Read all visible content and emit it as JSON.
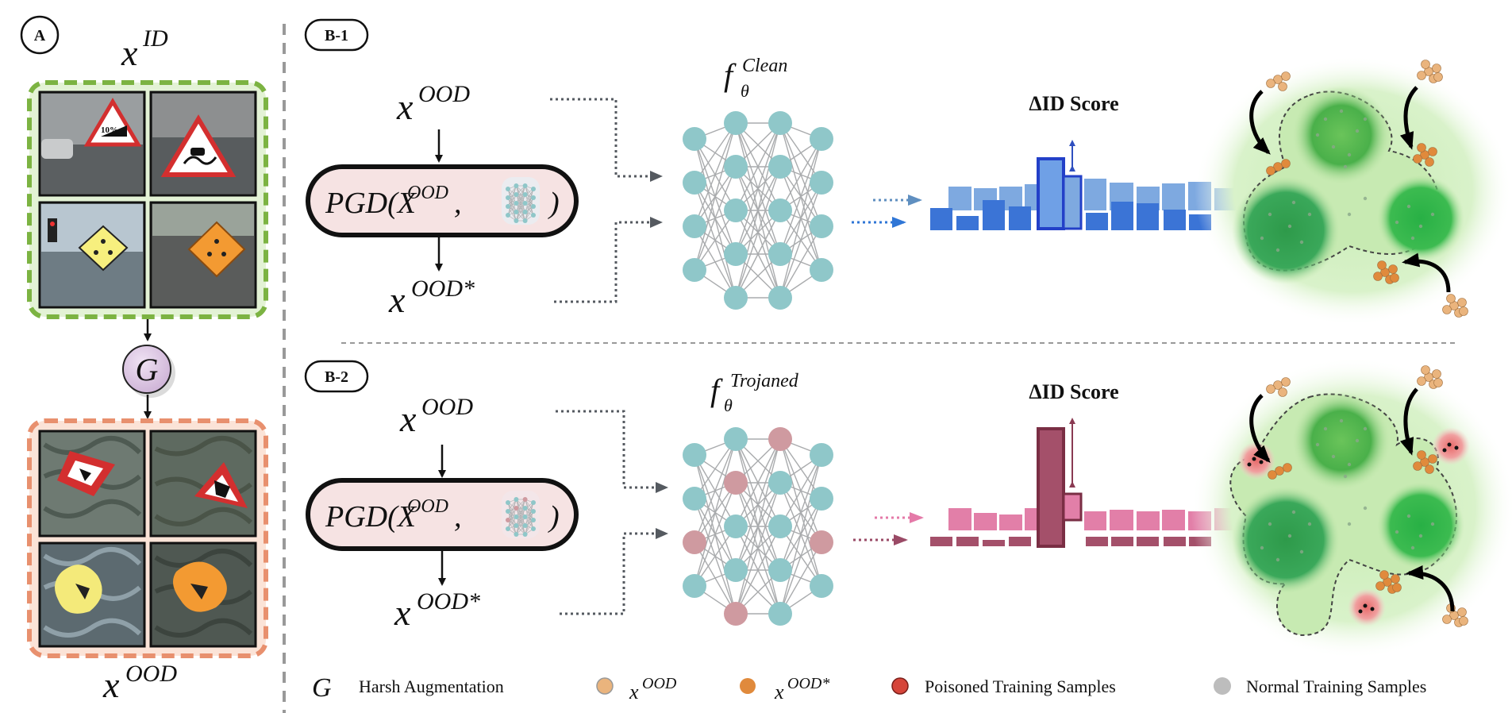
{
  "panel_a": {
    "label": "A",
    "x_id_base": "x",
    "x_id_sup": "ID",
    "g_label": "G",
    "x_ood_base": "x",
    "x_ood_sup": "OOD",
    "signs_top": [
      "sign-10-percent",
      "sign-slippery-road",
      "sign-yellow-junction",
      "sign-orange-junction"
    ],
    "signs_bottom": [
      "warped-red-triangle",
      "warped-red-triangle-2",
      "warped-yellow-diamond",
      "warped-orange-diamond"
    ]
  },
  "b1": {
    "label": "B-1",
    "input_base": "x",
    "input_sup": "OOD",
    "pgd_text": "PGD(X",
    "pgd_sup": "OOD",
    "pgd_comma": ",",
    "pgd_close": ")",
    "output_base": "x",
    "output_sup": "OOD*",
    "model_base": "f",
    "model_sub": "θ",
    "model_sup": "Clean",
    "score_title": "ΔID Score"
  },
  "b2": {
    "label": "B-2",
    "input_base": "x",
    "input_sup": "OOD",
    "pgd_text": "PGD(X",
    "pgd_sup": "OOD",
    "pgd_comma": ",",
    "pgd_close": ")",
    "output_base": "x",
    "output_sup": "OOD*",
    "model_base": "f",
    "model_sub": "θ",
    "model_sup": "Trojaned",
    "score_title": "ΔID Score"
  },
  "legend": {
    "g_symbol": "G",
    "g_text": "Harsh Augmentation",
    "ood_base": "x",
    "ood_sup": "OOD",
    "ood_star_base": "x",
    "ood_star_sup": "OOD*",
    "poisoned": "Poisoned Training Samples",
    "normal": "Normal Training Samples"
  },
  "colors": {
    "green_border": "#7cb342",
    "green_fill": "#e3f2d5",
    "orange_border": "#e8906e",
    "orange_fill": "#fbe3d7",
    "g_circle": "#d9c2e0",
    "pgd_fill": "#f6e3e3",
    "blue_bar": "#3b74d6",
    "blue_bar_light": "#7ea9e0",
    "pink_bar": "#e27fa8",
    "mauve_bar": "#a4506a",
    "teal_node": "#8fc7c9",
    "pink_node": "#cf9aa0",
    "ood_dot": "#eab47d",
    "ood_star_dot": "#e08a3c",
    "poison_dot": "#d6453a",
    "normal_dot": "#bdbdbd"
  }
}
